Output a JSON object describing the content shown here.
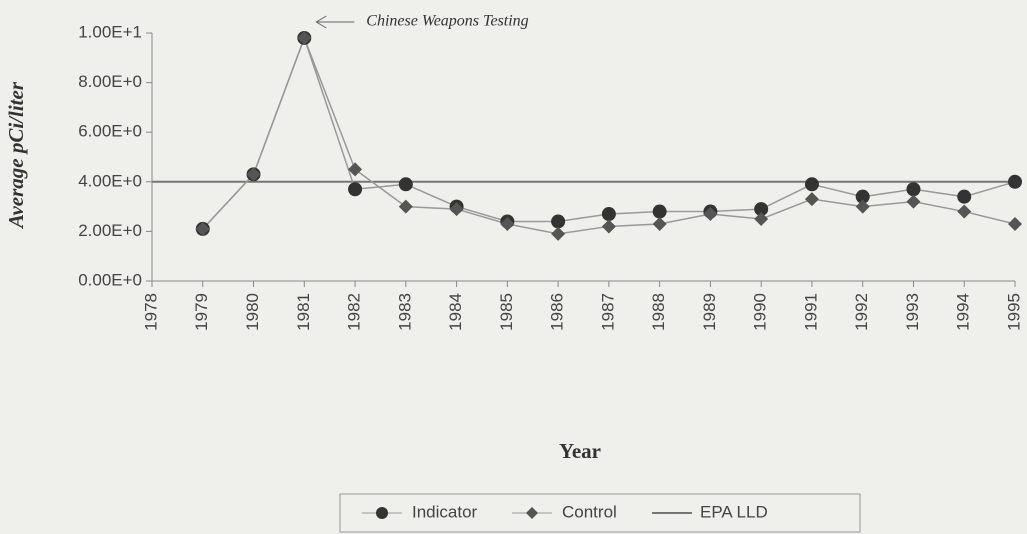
{
  "chart_data": {
    "type": "line",
    "y_label": "Average pCi/liter",
    "x_label": "Year",
    "annotation": {
      "text": "Chinese Weapons Testing",
      "x": 1981
    },
    "x": [
      1979,
      1980,
      1981,
      1982,
      1983,
      1984,
      1985,
      1986,
      1987,
      1988,
      1989,
      1990,
      1991,
      1992,
      1993,
      1994,
      1995
    ],
    "series": [
      {
        "name": "Indicator",
        "color": "#333333",
        "marker": "circle",
        "values": [
          2.1,
          4.3,
          9.8,
          3.7,
          3.9,
          3.0,
          2.4,
          2.4,
          2.7,
          2.8,
          2.8,
          2.9,
          3.9,
          3.4,
          3.7,
          3.4,
          4.0
        ]
      },
      {
        "name": "Control",
        "color": "#555555",
        "marker": "diamond",
        "values": [
          2.1,
          4.3,
          9.8,
          4.5,
          3.0,
          2.9,
          2.3,
          1.9,
          2.2,
          2.3,
          2.7,
          2.5,
          3.3,
          3.0,
          3.2,
          2.8,
          2.3
        ]
      }
    ],
    "reference_line": {
      "name": "EPA LLD",
      "value": 4.0,
      "color": "#777777"
    },
    "xlim": [
      1978,
      1995
    ],
    "xticks": [
      1978,
      1979,
      1980,
      1981,
      1982,
      1983,
      1984,
      1985,
      1986,
      1987,
      1988,
      1989,
      1990,
      1991,
      1992,
      1993,
      1994,
      1995
    ],
    "ylim": [
      0,
      10
    ],
    "yticks": [
      {
        "value": 0,
        "label": "0.00E+0"
      },
      {
        "value": 2,
        "label": "2.00E+0"
      },
      {
        "value": 4,
        "label": "4.00E+0"
      },
      {
        "value": 6,
        "label": "6.00E+0"
      },
      {
        "value": 8,
        "label": "8.00E+0"
      },
      {
        "value": 10,
        "label": "1.00E+1"
      }
    ],
    "legend": "bottom"
  }
}
